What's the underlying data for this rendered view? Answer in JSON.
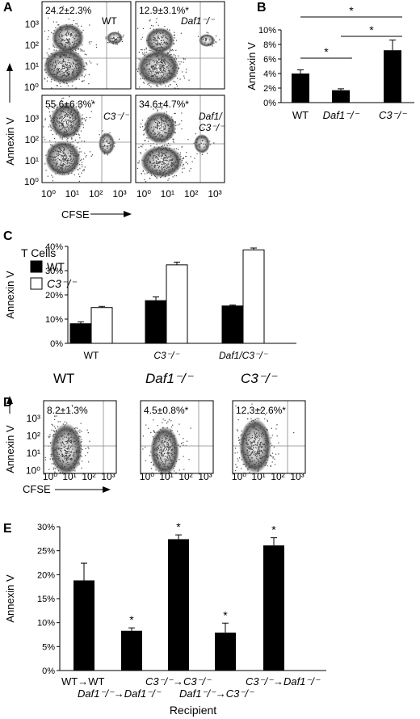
{
  "panels": {
    "A": {
      "label": "A",
      "ylabel": "Annexin V",
      "xlabel": "CFSE",
      "y_ticks": [
        "10³",
        "10²",
        "10¹",
        "10⁰"
      ],
      "x_ticks": [
        "10⁰",
        "10¹",
        "10²",
        "10³"
      ],
      "plots": [
        {
          "stat": "24.2±2.3%",
          "tag": "WT"
        },
        {
          "stat": "12.9±3.1%*",
          "tag": "Daf1⁻/⁻"
        },
        {
          "stat": "55.6±6.3%*",
          "tag": "C3⁻/⁻"
        },
        {
          "stat": "34.6±4.7%*",
          "tag": "Daf1/ C3⁻/⁻"
        }
      ]
    },
    "B": {
      "label": "B"
    },
    "C": {
      "label": "C",
      "legend_title": "T Cells"
    },
    "D": {
      "label": "D",
      "ylabel": "Annexin V",
      "xlabel": "CFSE",
      "y_ticks": [
        "10³",
        "10²",
        "10¹",
        "10⁰"
      ],
      "x_ticks": [
        "10⁰",
        "10¹",
        "10²",
        "10³"
      ],
      "plots": [
        {
          "title": "WT",
          "stat": "8.2±1.3%"
        },
        {
          "title": "Daf1⁻/⁻",
          "stat": "4.5±0.8%*"
        },
        {
          "title": "C3⁻/⁻",
          "stat": "12.3±2.6%*"
        }
      ]
    },
    "E": {
      "label": "E"
    }
  },
  "chart_data": [
    {
      "panel": "B",
      "type": "bar",
      "ylabel": "Annexin V",
      "categories": [
        "WT",
        "Daf1⁻/⁻",
        "C3⁻/⁻"
      ],
      "values": [
        4.0,
        1.7,
        7.2
      ],
      "errors": [
        0.5,
        0.2,
        1.4
      ],
      "yticks": [
        "0%",
        "2%",
        "4%",
        "6%",
        "8%",
        "10%"
      ],
      "ylim": [
        0,
        10
      ],
      "significance": [
        {
          "from": 0,
          "to": 1,
          "label": "*"
        },
        {
          "from": 1,
          "to": 2,
          "label": "*"
        },
        {
          "from": 0,
          "to": 2,
          "label": "*"
        }
      ]
    },
    {
      "panel": "C",
      "type": "bar",
      "ylabel": "Annexin V",
      "categories": [
        "WT",
        "C3⁻/⁻",
        "Daf1/C3⁻/⁻"
      ],
      "series": [
        {
          "name": "WT",
          "color": "#000000",
          "values": [
            8.5,
            18.5,
            16.2
          ],
          "errors": [
            0.8,
            1.6,
            0.4
          ]
        },
        {
          "name": "C3⁻/⁻",
          "color": "#ffffff",
          "values": [
            15.5,
            34.0,
            40.5
          ],
          "errors": [
            0.5,
            1.2,
            0.8
          ]
        }
      ],
      "yticks": [
        "0%",
        "10%",
        "20%",
        "30%",
        "40%"
      ],
      "ylim": [
        0,
        42
      ]
    },
    {
      "panel": "E",
      "type": "bar",
      "ylabel": "Annexin V",
      "xlabel": "Recipient",
      "categories": [
        "WT→WT",
        "Daf1⁻/⁻→Daf1⁻/⁻",
        "C3⁻/⁻→C3⁻/⁻",
        "Daf1⁻/⁻→C3⁻/⁻",
        "C3⁻/⁻→Daf1⁻/⁻"
      ],
      "values": [
        18.8,
        8.3,
        27.4,
        7.9,
        26.1
      ],
      "errors": [
        3.6,
        0.6,
        0.9,
        2.0,
        1.6
      ],
      "significance_marks": [
        "",
        "*",
        "*",
        "*",
        "*"
      ],
      "yticks": [
        "0%",
        "5%",
        "10%",
        "15%",
        "20%",
        "25%",
        "30%"
      ],
      "ylim": [
        0,
        30
      ]
    }
  ]
}
